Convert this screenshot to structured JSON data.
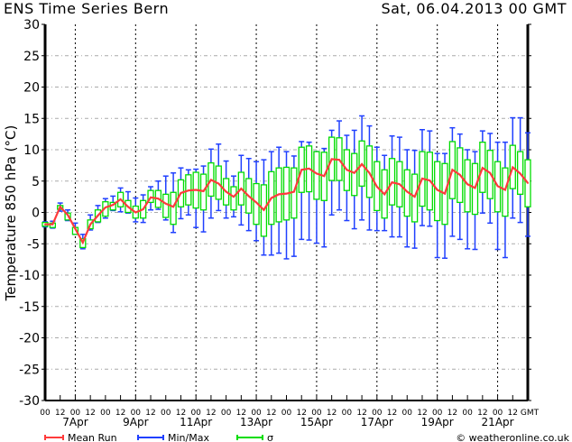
{
  "header": {
    "title": "ENS Time Series Bern",
    "date": "Sat, 06.04.2013 00 GMT"
  },
  "legend": [
    {
      "label": "Mean Run",
      "color": "#ff3b3b"
    },
    {
      "label": "Min/Max",
      "color": "#2040ff"
    },
    {
      "label": "σ",
      "color": "#00dd00"
    }
  ],
  "copyright": "© weatheronline.co.uk",
  "chart_data": {
    "type": "line",
    "title": "ENS Time Series Bern",
    "ylabel": "Temperature 850 hPa (°C)",
    "xlabel": "",
    "ylim": [
      -30,
      30
    ],
    "yticks": [
      30,
      25,
      20,
      15,
      10,
      5,
      0,
      -5,
      -10,
      -15,
      -20,
      -25,
      -30
    ],
    "x_hour_labels": [
      "00",
      "12",
      "00",
      "12",
      "00",
      "12",
      "00",
      "12",
      "00",
      "12",
      "00",
      "12",
      "00",
      "12",
      "00",
      "12",
      "00",
      "12",
      "00",
      "12",
      "00",
      "12",
      "00",
      "12",
      "00",
      "12",
      "00",
      "12",
      "00",
      "12",
      "00",
      "12"
    ],
    "x_tz_label": "GMT",
    "x_date_labels": [
      {
        "label": "7Apr",
        "day_offset": 1
      },
      {
        "label": "9Apr",
        "day_offset": 3
      },
      {
        "label": "11Apr",
        "day_offset": 5
      },
      {
        "label": "13Apr",
        "day_offset": 7
      },
      {
        "label": "15Apr",
        "day_offset": 9
      },
      {
        "label": "17Apr",
        "day_offset": 11
      },
      {
        "label": "19Apr",
        "day_offset": 13
      },
      {
        "label": "21Apr",
        "day_offset": 15
      }
    ],
    "time_step_hours": 6,
    "total_days": 16,
    "grid": true,
    "legend_placement": "bottom",
    "series": {
      "mean": [
        -1.9,
        -1.9,
        0.9,
        -0.4,
        -2.6,
        -4.8,
        -1.9,
        -0.5,
        0.8,
        1.2,
        2.1,
        0.9,
        0,
        0.5,
        2.4,
        2.2,
        1.4,
        0.9,
        3.1,
        3.5,
        3.6,
        3.4,
        5.2,
        4.6,
        3.3,
        2.5,
        3.8,
        2.6,
        1.6,
        0.4,
        2.3,
        2.9,
        3.0,
        3.3,
        6.8,
        7.0,
        6.2,
        5.8,
        8.5,
        8.4,
        6.8,
        6.3,
        7.7,
        6.3,
        4.1,
        2.9,
        4.8,
        4.5,
        3.3,
        2.5,
        5.4,
        5.1,
        3.6,
        3.0,
        6.8,
        6.0,
        4.5,
        3.9,
        7.1,
        6.3,
        4.2,
        3.6,
        7.2,
        6.2,
        4.7
      ],
      "sigma_low": [
        -2.2,
        -2.4,
        0.5,
        -1.2,
        -3.5,
        -5.6,
        -2.6,
        -1.5,
        -0.6,
        0.4,
        0.9,
        0,
        -0.9,
        -0.9,
        1.6,
        0.8,
        -0.8,
        -1.9,
        0.9,
        1.2,
        0.7,
        0.4,
        2.6,
        2.1,
        1.2,
        0.4,
        1.2,
        -0.1,
        -1.9,
        -3.8,
        -1.9,
        -1.5,
        -1.2,
        -0.9,
        3.2,
        3.3,
        2.1,
        1.9,
        5.1,
        5.1,
        3.5,
        2.7,
        4.2,
        2.4,
        0.3,
        -0.9,
        1.2,
        0.9,
        -0.6,
        -1.5,
        1.0,
        0.4,
        -1.3,
        -1.9,
        2.2,
        1.6,
        0.1,
        -0.3,
        3.2,
        2.2,
        0.1,
        -0.6,
        3.8,
        2.9,
        0.9
      ],
      "sigma_high": [
        -1.6,
        -1.7,
        1.1,
        -0.1,
        -2.4,
        -4.2,
        -1.2,
        0.4,
        1.7,
        1.6,
        3.2,
        1.9,
        1.0,
        1.9,
        3.5,
        3.5,
        2.9,
        3.2,
        5.2,
        6.0,
        6.4,
        6.1,
        7.9,
        7.4,
        5.4,
        4.1,
        6.4,
        5.4,
        4.6,
        4.4,
        6.5,
        7.1,
        7.2,
        7.1,
        10.4,
        10.6,
        9.7,
        9.6,
        12.0,
        11.9,
        10.0,
        9.4,
        11.4,
        10.6,
        8.1,
        6.8,
        8.6,
        8.1,
        6.8,
        6.1,
        9.7,
        9.6,
        8.1,
        7.8,
        11.3,
        10.3,
        8.4,
        7.8,
        11.2,
        9.9,
        8.1,
        7.1,
        10.7,
        9.7,
        8.4
      ],
      "min": [
        -2.3,
        -2.5,
        0.2,
        -1.3,
        -3.5,
        -5.8,
        -2.8,
        -1.6,
        -0.9,
        0.3,
        0.1,
        -0.1,
        -1.5,
        -1.6,
        0.4,
        0.5,
        -1.2,
        -3.2,
        -1.0,
        -0.4,
        -2.4,
        -3.1,
        -0.9,
        0.3,
        -0.9,
        -0.7,
        -2.0,
        -2.9,
        -4.5,
        -6.8,
        -6.8,
        -6.5,
        -7.4,
        -7.0,
        -4.3,
        -4.4,
        -4.9,
        -5.5,
        -0.4,
        0.4,
        -1.3,
        -2.6,
        -1.2,
        -2.8,
        -2.9,
        -2.9,
        -3.9,
        -3.9,
        -5.5,
        -5.7,
        -2.1,
        -2.2,
        -7.2,
        -7.3,
        -3.8,
        -4.3,
        -5.8,
        -5.9,
        -0.1,
        -1.7,
        -5.9,
        -7.2,
        -0.9,
        -1.6,
        -3.8
      ],
      "max": [
        -1.5,
        -1.4,
        1.5,
        0.4,
        -1.7,
        -3.5,
        -0.4,
        1.1,
        2.2,
        2.6,
        3.9,
        3.3,
        2.3,
        2.8,
        4.1,
        5.0,
        5.8,
        6.3,
        7.1,
        6.8,
        6.9,
        7.4,
        10.1,
        10.9,
        8.2,
        5.8,
        9.1,
        8.6,
        8.1,
        8.4,
        9.7,
        10.4,
        9.7,
        9.0,
        11.3,
        11.2,
        9.7,
        10.2,
        13.1,
        14.6,
        12.3,
        13.1,
        15.4,
        13.8,
        10.4,
        9.1,
        12.2,
        12.0,
        10.0,
        9.9,
        13.2,
        13.0,
        9.4,
        9.4,
        13.5,
        12.5,
        10.0,
        9.7,
        13.0,
        12.6,
        11.2,
        11.2,
        15.1,
        15.1,
        12.7
      ]
    }
  }
}
